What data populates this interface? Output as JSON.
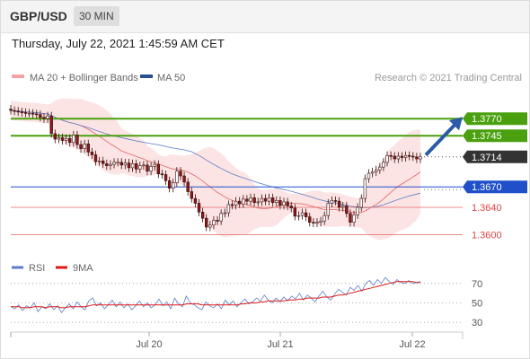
{
  "header": {
    "symbol": "GBP/USD",
    "timeframe": "30 MIN"
  },
  "timestamp": "Thursday, July 22, 2021 1:45:59 AM CET",
  "legend": {
    "ma20_label": "MA 20 + Bollinger Bands",
    "ma50_label": "MA 50",
    "credit": "Research © 2021 Trading Central"
  },
  "colors": {
    "resistance": "#4aa00f",
    "support": "#e06666",
    "pivot": "#1f4fc9",
    "current": "#333333",
    "up_candle": "#ffffff",
    "down_candle": "#8b1a1a",
    "band_fill": "#fbd9d9",
    "ma20": "#e06666",
    "ma50": "#5b7fc7",
    "rsi": "#5b7fc7",
    "rsi_ma": "#e01818",
    "arrow": "#2a5aa8"
  },
  "chart_data": [
    {
      "type": "candlestick",
      "x_labels": [
        "Jul 20",
        "Jul 21",
        "Jul 22"
      ],
      "ylim": [
        1.3565,
        1.3815
      ],
      "series": [
        {
          "name": "MA 20 + Bollinger Bands"
        },
        {
          "name": "MA 50"
        }
      ],
      "close": [
        1.3782,
        1.3781,
        1.378,
        1.3779,
        1.3778,
        1.3778,
        1.3777,
        1.3776,
        1.3772,
        1.377,
        1.3774,
        1.3748,
        1.374,
        1.3742,
        1.3738,
        1.3741,
        1.3735,
        1.3746,
        1.3732,
        1.3726,
        1.3733,
        1.3721,
        1.3717,
        1.3707,
        1.3708,
        1.3704,
        1.3701,
        1.3703,
        1.3706,
        1.3706,
        1.3702,
        1.3705,
        1.3698,
        1.3704,
        1.3696,
        1.3701,
        1.3702,
        1.3693,
        1.37,
        1.3703,
        1.3689,
        1.3688,
        1.3679,
        1.3668,
        1.3676,
        1.3693,
        1.3686,
        1.3677,
        1.3663,
        1.3653,
        1.3646,
        1.3633,
        1.3624,
        1.3611,
        1.3614,
        1.3621,
        1.362,
        1.3631,
        1.3632,
        1.3644,
        1.3643,
        1.3649,
        1.3645,
        1.3652,
        1.3649,
        1.3654,
        1.3647,
        1.3648,
        1.3653,
        1.3649,
        1.3654,
        1.3647,
        1.365,
        1.3643,
        1.3648,
        1.3642,
        1.3639,
        1.3627,
        1.3628,
        1.3632,
        1.3626,
        1.3618,
        1.3617,
        1.3618,
        1.362,
        1.3628,
        1.3646,
        1.365,
        1.3649,
        1.364,
        1.3642,
        1.3631,
        1.3618,
        1.3629,
        1.364,
        1.3653,
        1.3682,
        1.369,
        1.3692,
        1.3695,
        1.3699,
        1.3706,
        1.3716,
        1.3715,
        1.3711,
        1.3715,
        1.3713,
        1.3716,
        1.3715,
        1.3714,
        1.3711,
        1.3714
      ],
      "ma20_last": 1.3694,
      "ma50_last": 1.3666,
      "levels": [
        {
          "value": 1.377,
          "label": "1.3770",
          "kind": "resistance"
        },
        {
          "value": 1.3745,
          "label": "1.3745",
          "kind": "resistance"
        },
        {
          "value": 1.3714,
          "label": "1.3714",
          "kind": "current"
        },
        {
          "value": 1.367,
          "label": "1.3670",
          "kind": "pivot"
        },
        {
          "value": 1.364,
          "label": "1.3640",
          "kind": "support"
        },
        {
          "value": 1.36,
          "label": "1.3600",
          "kind": "support"
        }
      ]
    },
    {
      "type": "line",
      "title": "RSI",
      "ylim": [
        20,
        80
      ],
      "y_ticks": [
        70,
        50,
        30
      ],
      "series": [
        {
          "name": "RSI",
          "values": [
            46,
            44,
            48,
            42,
            47,
            45,
            50,
            41,
            46,
            44,
            49,
            43,
            47,
            40,
            45,
            49,
            44,
            51,
            46,
            43,
            52,
            55,
            47,
            50,
            44,
            48,
            53,
            46,
            51,
            45,
            49,
            43,
            47,
            52,
            46,
            50,
            45,
            48,
            54,
            47,
            51,
            44,
            55,
            49,
            46,
            57,
            50,
            48,
            45,
            43,
            51,
            47,
            45,
            49,
            44,
            53,
            48,
            52,
            46,
            50,
            54,
            49,
            51,
            55,
            52,
            58,
            53,
            50,
            55,
            51,
            56,
            52,
            57,
            54,
            60,
            53,
            58,
            55,
            51,
            57,
            62,
            56,
            53,
            59,
            64,
            61,
            58,
            66,
            63,
            68,
            62,
            70,
            73,
            68,
            74,
            70,
            76,
            72,
            69,
            74,
            71,
            70,
            73,
            70,
            71,
            72
          ]
        },
        {
          "name": "9MA",
          "values": [
            46,
            46,
            46,
            45,
            45,
            45,
            46,
            46,
            46,
            45,
            46,
            46,
            46,
            45,
            45,
            46,
            46,
            46,
            46,
            46,
            47,
            48,
            48,
            48,
            48,
            48,
            48,
            48,
            48,
            48,
            48,
            48,
            48,
            48,
            48,
            48,
            48,
            48,
            48,
            48,
            48,
            48,
            48,
            48,
            48,
            49,
            49,
            49,
            49,
            48,
            48,
            48,
            48,
            48,
            48,
            48,
            48,
            48,
            48,
            49,
            49,
            50,
            50,
            50,
            51,
            51,
            52,
            52,
            52,
            52,
            52,
            53,
            53,
            53,
            54,
            54,
            55,
            55,
            55,
            55,
            56,
            56,
            56,
            57,
            58,
            58,
            59,
            60,
            61,
            62,
            63,
            64,
            65,
            66,
            67,
            68,
            69,
            70,
            71,
            72,
            72,
            72,
            72,
            72,
            71,
            71
          ]
        }
      ]
    }
  ]
}
